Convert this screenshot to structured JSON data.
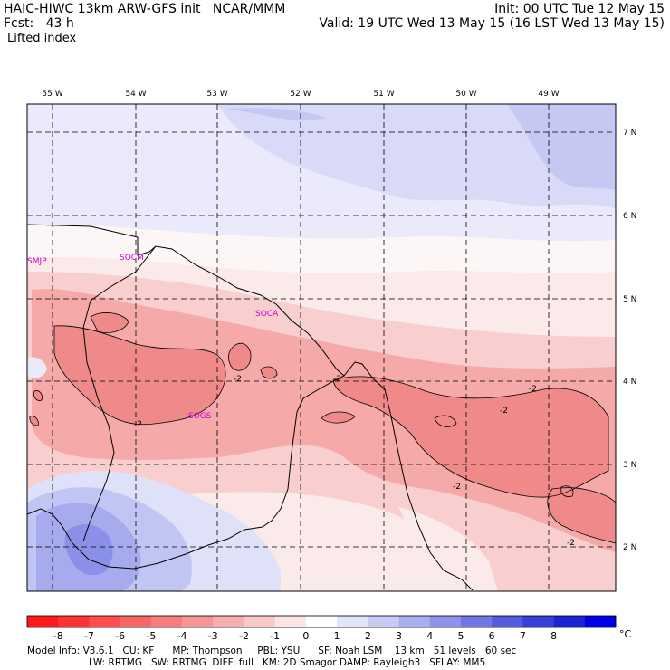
{
  "header": {
    "line1_left": "HAIC-HIWC 13km ARW-GFS init   NCAR/MMM",
    "line2_left": "Fcst:   43 h",
    "line3_left": "Lifted index",
    "line1_right": "Init: 00 UTC Tue 12 May 15",
    "line2_right": "Valid: 19 UTC Wed 13 May 15 (16 LST Wed 13 May 15)"
  },
  "map": {
    "lon_labels": [
      "55 W",
      "54 W",
      "53 W",
      "52 W",
      "51 W",
      "50 W",
      "49 W"
    ],
    "lat_labels": [
      "7 N",
      "6 N",
      "5 N",
      "4 N",
      "3 N",
      "2 N"
    ],
    "stations": [
      "SMJP",
      "SOCM",
      "SOCA",
      "SOGS"
    ],
    "contour_labels": [
      "-2",
      "-2",
      "-2",
      "-2",
      "-2",
      "-2",
      "-2"
    ]
  },
  "colorbar": {
    "ticks": [
      "-8",
      "-7",
      "-6",
      "-5",
      "-4",
      "-3",
      "-2",
      "-1",
      "0",
      "1",
      "2",
      "3",
      "4",
      "5",
      "6",
      "7",
      "8"
    ],
    "unit": "°C",
    "colors": [
      "#ff1a1a",
      "#ff3333",
      "#ff4d4d",
      "#f96666",
      "#f77d7d",
      "#f59595",
      "#f7aeae",
      "#f9c8c8",
      "#fde4e4",
      "#ffffff",
      "#e2e4fa",
      "#c7caf5",
      "#aaaff0",
      "#8d93ea",
      "#7077e4",
      "#535bde",
      "#3640d8",
      "#1a24d2",
      "#0000e6"
    ]
  },
  "footer": {
    "line1": "Model Info: V3.6.1   CU: KF      MP: Thompson     PBL: YSU      SF: Noah LSM    13 km   51 levels   60 sec",
    "line2": "LW: RRTMG   SW: RRTMG  DIFF: full   KM: 2D Smagor DAMP: Rayleigh3   SFLAY: MM5"
  }
}
